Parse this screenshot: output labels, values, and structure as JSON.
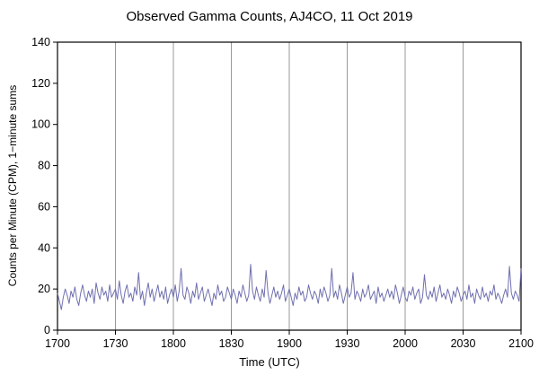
{
  "chart_data": {
    "type": "line",
    "title": "Observed Gamma Counts, AJ4CO, 11 Oct 2019",
    "xlabel": "Time (UTC)",
    "ylabel": "Counts per Minute (CPM), 1−minute sums",
    "x_tick_labels": [
      "1700",
      "1730",
      "1800",
      "1830",
      "1900",
      "1930",
      "2000",
      "2030",
      "2100"
    ],
    "y_ticks": [
      0,
      20,
      40,
      60,
      80,
      100,
      120,
      140
    ],
    "ylim": [
      0,
      140
    ],
    "x_range_minutes": [
      0,
      240
    ],
    "grid": "vertical-only",
    "line_color": "#7070b0",
    "grid_color": "#999999",
    "axis_color": "#000000",
    "values": [
      18,
      14,
      10,
      16,
      20,
      17,
      13,
      19,
      16,
      21,
      15,
      12,
      18,
      22,
      17,
      14,
      19,
      16,
      20,
      13,
      23,
      18,
      15,
      21,
      17,
      19,
      14,
      22,
      16,
      18,
      20,
      15,
      24,
      17,
      13,
      19,
      22,
      16,
      18,
      14,
      21,
      17,
      28,
      15,
      19,
      12,
      18,
      23,
      16,
      20,
      14,
      18,
      22,
      16,
      19,
      15,
      21,
      13,
      17,
      20,
      16,
      22,
      14,
      19,
      30,
      17,
      15,
      21,
      18,
      13,
      19,
      16,
      23,
      15,
      18,
      21,
      14,
      17,
      20,
      16,
      12,
      18,
      15,
      22,
      17,
      19,
      14,
      16,
      21,
      18,
      15,
      20,
      17,
      13,
      19,
      16,
      22,
      18,
      14,
      17,
      32,
      19,
      15,
      21,
      17,
      14,
      20,
      16,
      29,
      18,
      13,
      17,
      21,
      16,
      19,
      15,
      18,
      22,
      14,
      17,
      20,
      16,
      12,
      18,
      15,
      21,
      17,
      19,
      14,
      16,
      22,
      18,
      15,
      19,
      17,
      13,
      20,
      16,
      21,
      18,
      14,
      17,
      30,
      16,
      19,
      15,
      22,
      18,
      13,
      17,
      21,
      16,
      18,
      28,
      15,
      19,
      17,
      14,
      20,
      16,
      18,
      22,
      15,
      17,
      19,
      13,
      21,
      16,
      18,
      14,
      17,
      20,
      16,
      19,
      15,
      22,
      18,
      13,
      17,
      21,
      16,
      14,
      19,
      17,
      21,
      15,
      18,
      20,
      13,
      16,
      27,
      17,
      15,
      19,
      16,
      21,
      14,
      18,
      22,
      16,
      18,
      15,
      20,
      17,
      13,
      19,
      16,
      21,
      18,
      14,
      17,
      19,
      15,
      22,
      16,
      18,
      13,
      20,
      17,
      15,
      21,
      16,
      18,
      14,
      19,
      17,
      22,
      15,
      18,
      16,
      13,
      17,
      20,
      16,
      31,
      18,
      15,
      19,
      17,
      14,
      30
    ]
  }
}
